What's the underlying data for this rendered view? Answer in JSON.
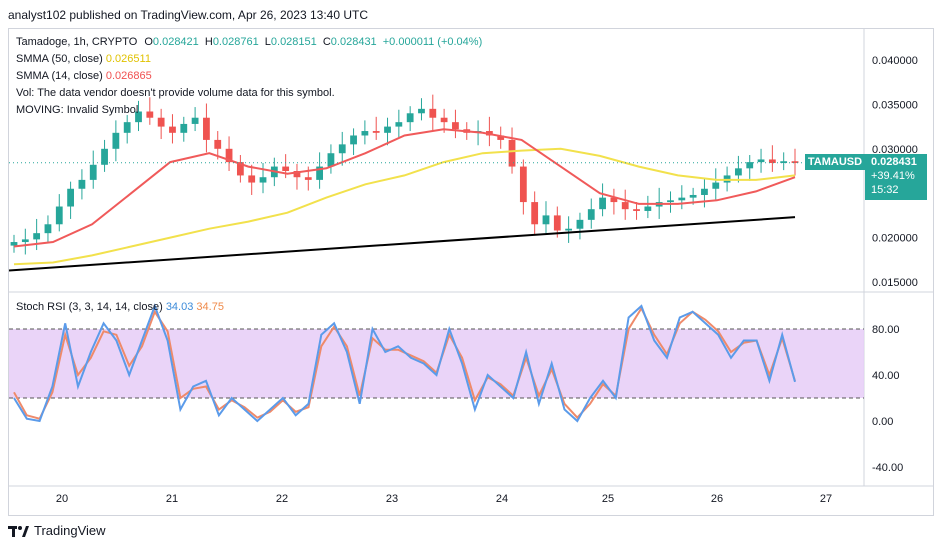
{
  "header": {
    "published": "analyst102 published on TradingView.com, Apr 26, 2023 13:40 UTC"
  },
  "legend": {
    "symbol": "Tamadoge, 1h, CRYPTO",
    "o_label": "O",
    "o_value": "0.028421",
    "h_label": "H",
    "h_value": "0.028761",
    "l_label": "L",
    "l_value": "0.028151",
    "c_label": "C",
    "c_value": "0.028431",
    "change": "+0.000011 (+0.04%)",
    "sma50_label": "SMMA (50, close)",
    "sma50_value": "0.026511",
    "sma14_label": "SMMA (14, close)",
    "sma14_value": "0.026865",
    "vol_text": "Vol: The data vendor doesn't provide volume data for this symbol.",
    "moving_text": "MOVING: Invalid Symbol",
    "stoch_label": "Stoch RSI (3, 3, 14, 14, close)",
    "stoch_k": "34.03",
    "stoch_d": "34.75"
  },
  "price_tag": {
    "ticker": "TAMAUSD",
    "price": "0.028431",
    "change_pct": "+39.41%",
    "countdown": "15:32"
  },
  "footer": {
    "brand": "TradingView"
  },
  "colors": {
    "up": "#26a69a",
    "down": "#ef5350",
    "smma50": "#f2e14c",
    "smma14": "#f05a5a",
    "stoch_k": "#5b9bea",
    "stoch_d": "#ef8a6a",
    "stoch_band": "#e6ccf7",
    "trendline": "#000000"
  },
  "chart_data": [
    {
      "type": "candlestick",
      "symbol": "TAMAUSD",
      "timeframe": "1h",
      "x_ticks": [
        "20",
        "21",
        "22",
        "23",
        "24",
        "25",
        "26",
        "27"
      ],
      "y_ticks": [
        "0.040000",
        "0.035000",
        "0.030000",
        "0.020000",
        "0.015000"
      ],
      "ylim": [
        0.0145,
        0.0415
      ],
      "close_approx": [
        0.0195,
        0.0198,
        0.0205,
        0.0215,
        0.0235,
        0.0255,
        0.0265,
        0.0282,
        0.03,
        0.0318,
        0.033,
        0.0342,
        0.0335,
        0.0325,
        0.0318,
        0.0328,
        0.0335,
        0.031,
        0.03,
        0.0285,
        0.027,
        0.0262,
        0.0268,
        0.028,
        0.0275,
        0.0268,
        0.0265,
        0.028,
        0.0295,
        0.0305,
        0.0315,
        0.032,
        0.0318,
        0.0325,
        0.033,
        0.034,
        0.0345,
        0.0335,
        0.033,
        0.0322,
        0.0318,
        0.032,
        0.0315,
        0.031,
        0.028,
        0.024,
        0.0215,
        0.0225,
        0.0208,
        0.021,
        0.022,
        0.0232,
        0.0245,
        0.024,
        0.0232,
        0.023,
        0.0235,
        0.024,
        0.0242,
        0.0245,
        0.0248,
        0.0255,
        0.0262,
        0.027,
        0.0278,
        0.0285,
        0.0288,
        0.0284,
        0.0286,
        0.0284
      ],
      "smma50_approx": [
        0.017,
        0.0172,
        0.018,
        0.019,
        0.02,
        0.021,
        0.0218,
        0.0228,
        0.0245,
        0.026,
        0.027,
        0.0285,
        0.0295,
        0.0298,
        0.03,
        0.0292,
        0.028,
        0.027,
        0.0265,
        0.0265,
        0.027
      ],
      "smma14_approx": [
        0.019,
        0.0195,
        0.0215,
        0.025,
        0.0285,
        0.0295,
        0.028,
        0.0272,
        0.0278,
        0.0295,
        0.0315,
        0.0322,
        0.0318,
        0.031,
        0.028,
        0.025,
        0.0238,
        0.0238,
        0.0242,
        0.0252,
        0.0268
      ],
      "trendline": {
        "from": [
          0,
          0.0163
        ],
        "to": [
          1,
          0.0223
        ]
      },
      "last_price": 0.028431
    },
    {
      "type": "line",
      "title": "Stoch RSI (3, 3, 14, 14, close)",
      "y_ticks": [
        "80.00",
        "40.00",
        "0.00",
        "-40.00"
      ],
      "ylim": [
        -52,
        112
      ],
      "band": [
        20,
        80
      ],
      "series": [
        {
          "name": "K",
          "values": [
            20,
            2,
            0,
            30,
            85,
            30,
            60,
            85,
            70,
            40,
            70,
            100,
            70,
            10,
            30,
            35,
            5,
            20,
            10,
            0,
            10,
            20,
            5,
            15,
            75,
            85,
            60,
            15,
            80,
            60,
            65,
            55,
            50,
            40,
            80,
            50,
            10,
            40,
            30,
            20,
            60,
            15,
            50,
            10,
            0,
            20,
            35,
            20,
            90,
            100,
            70,
            55,
            90,
            95,
            85,
            75,
            55,
            70,
            70,
            35,
            75,
            34.03
          ]
        },
        {
          "name": "D",
          "values": [
            25,
            5,
            2,
            25,
            75,
            40,
            55,
            78,
            75,
            48,
            65,
            95,
            78,
            20,
            28,
            30,
            10,
            18,
            12,
            3,
            8,
            18,
            8,
            12,
            65,
            82,
            65,
            22,
            72,
            62,
            62,
            57,
            52,
            42,
            75,
            55,
            18,
            38,
            32,
            22,
            55,
            22,
            45,
            15,
            3,
            15,
            32,
            22,
            80,
            98,
            75,
            58,
            85,
            95,
            88,
            78,
            60,
            68,
            70,
            40,
            72,
            34.75
          ]
        }
      ]
    }
  ]
}
